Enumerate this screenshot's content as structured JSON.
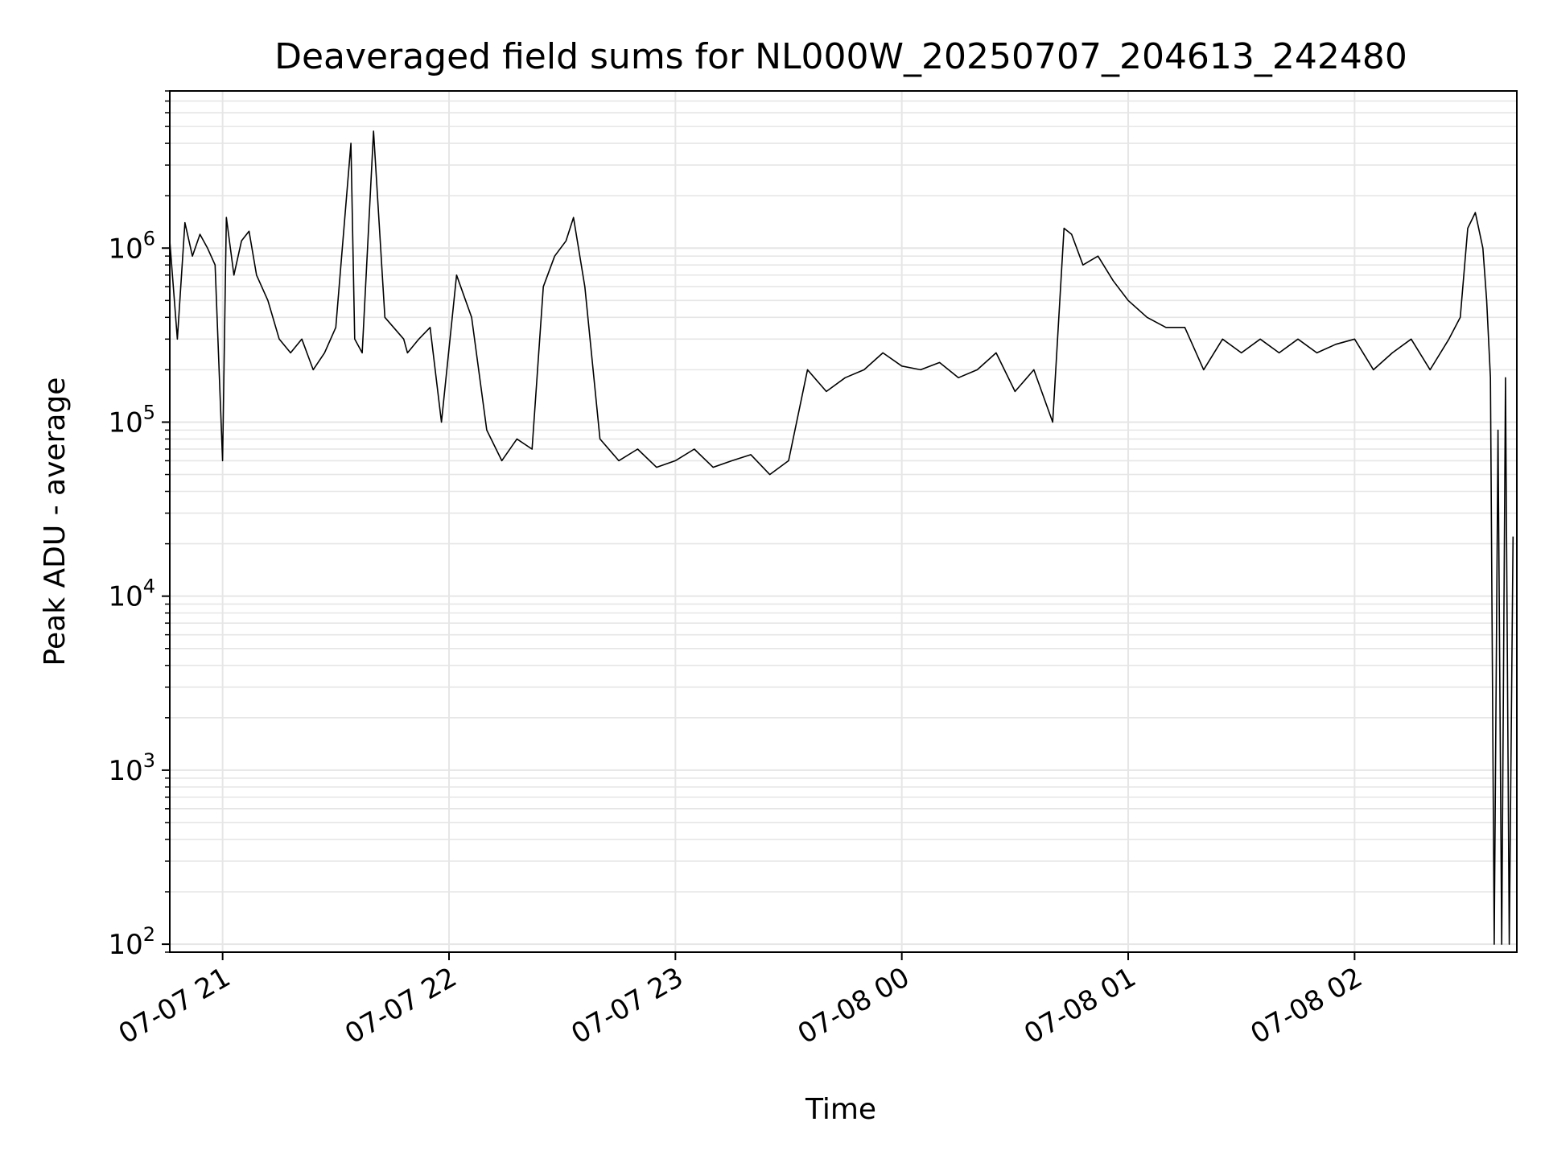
{
  "chart_data": {
    "type": "line",
    "title": "Deaveraged field sums for NL000W_20250707_204613_242480",
    "xlabel": "Time",
    "ylabel": "Peak ADU - average",
    "yscale": "log",
    "ylim": [
      90,
      8000000
    ],
    "xlim": [
      "2025-07-07 20:46",
      "2025-07-08 02:43"
    ],
    "grid": true,
    "line_color": "#000000",
    "grid_color": "#e6e6e6",
    "x_ticks": [
      {
        "time": "2025-07-07 21:00",
        "label": "07-07 21"
      },
      {
        "time": "2025-07-07 22:00",
        "label": "07-07 22"
      },
      {
        "time": "2025-07-07 23:00",
        "label": "07-07 23"
      },
      {
        "time": "2025-07-08 00:00",
        "label": "07-08 00"
      },
      {
        "time": "2025-07-08 01:00",
        "label": "07-08 01"
      },
      {
        "time": "2025-07-08 02:00",
        "label": "07-08 02"
      }
    ],
    "y_ticks": [
      {
        "value": 100,
        "base": "10",
        "exp": "2"
      },
      {
        "value": 1000,
        "base": "10",
        "exp": "3"
      },
      {
        "value": 10000,
        "base": "10",
        "exp": "4"
      },
      {
        "value": 100000,
        "base": "10",
        "exp": "5"
      },
      {
        "value": 1000000,
        "base": "10",
        "exp": "6"
      }
    ],
    "series": [
      {
        "x": [
          "2025-07-07 20:46",
          "2025-07-07 20:48",
          "2025-07-07 20:50",
          "2025-07-07 20:52",
          "2025-07-07 20:54",
          "2025-07-07 20:56",
          "2025-07-07 20:58",
          "2025-07-07 21:00",
          "2025-07-07 21:01",
          "2025-07-07 21:03",
          "2025-07-07 21:05",
          "2025-07-07 21:07",
          "2025-07-07 21:09",
          "2025-07-07 21:12",
          "2025-07-07 21:15",
          "2025-07-07 21:18",
          "2025-07-07 21:21",
          "2025-07-07 21:24",
          "2025-07-07 21:27",
          "2025-07-07 21:30",
          "2025-07-07 21:34",
          "2025-07-07 21:35",
          "2025-07-07 21:37",
          "2025-07-07 21:40",
          "2025-07-07 21:43",
          "2025-07-07 21:48",
          "2025-07-07 21:49",
          "2025-07-07 21:52",
          "2025-07-07 21:55",
          "2025-07-07 21:58",
          "2025-07-07 22:02",
          "2025-07-07 22:06",
          "2025-07-07 22:10",
          "2025-07-07 22:14",
          "2025-07-07 22:18",
          "2025-07-07 22:22",
          "2025-07-07 22:25",
          "2025-07-07 22:28",
          "2025-07-07 22:31",
          "2025-07-07 22:33",
          "2025-07-07 22:36",
          "2025-07-07 22:40",
          "2025-07-07 22:45",
          "2025-07-07 22:50",
          "2025-07-07 22:55",
          "2025-07-07 23:00",
          "2025-07-07 23:05",
          "2025-07-07 23:10",
          "2025-07-07 23:15",
          "2025-07-07 23:20",
          "2025-07-07 23:25",
          "2025-07-07 23:30",
          "2025-07-07 23:35",
          "2025-07-07 23:40",
          "2025-07-07 23:45",
          "2025-07-07 23:50",
          "2025-07-07 23:55",
          "2025-07-08 00:00",
          "2025-07-08 00:05",
          "2025-07-08 00:10",
          "2025-07-08 00:15",
          "2025-07-08 00:20",
          "2025-07-08 00:25",
          "2025-07-08 00:30",
          "2025-07-08 00:35",
          "2025-07-08 00:40",
          "2025-07-08 00:43",
          "2025-07-08 00:45",
          "2025-07-08 00:48",
          "2025-07-08 00:52",
          "2025-07-08 00:56",
          "2025-07-08 01:00",
          "2025-07-08 01:05",
          "2025-07-08 01:10",
          "2025-07-08 01:15",
          "2025-07-08 01:20",
          "2025-07-08 01:25",
          "2025-07-08 01:30",
          "2025-07-08 01:35",
          "2025-07-08 01:40",
          "2025-07-08 01:45",
          "2025-07-08 01:50",
          "2025-07-08 01:55",
          "2025-07-08 02:00",
          "2025-07-08 02:05",
          "2025-07-08 02:10",
          "2025-07-08 02:15",
          "2025-07-08 02:20",
          "2025-07-08 02:25",
          "2025-07-08 02:28",
          "2025-07-08 02:30",
          "2025-07-08 02:32",
          "2025-07-08 02:34",
          "2025-07-08 02:35",
          "2025-07-08 02:36",
          "2025-07-08 02:37",
          "2025-07-08 02:38",
          "2025-07-08 02:39",
          "2025-07-08 02:40",
          "2025-07-08 02:41",
          "2025-07-08 02:42"
        ],
        "y": [
          1100000,
          300000,
          1400000,
          900000,
          1200000,
          1000000,
          800000,
          60000,
          1500000,
          700000,
          1100000,
          1250000,
          700000,
          500000,
          300000,
          250000,
          300000,
          200000,
          250000,
          350000,
          4000000,
          300000,
          250000,
          4700000,
          400000,
          300000,
          250000,
          300000,
          350000,
          100000,
          700000,
          400000,
          90000,
          60000,
          80000,
          70000,
          600000,
          900000,
          1100000,
          1500000,
          600000,
          80000,
          60000,
          70000,
          55000,
          60000,
          70000,
          55000,
          60000,
          65000,
          50000,
          60000,
          200000,
          150000,
          180000,
          200000,
          250000,
          210000,
          200000,
          220000,
          180000,
          200000,
          250000,
          150000,
          200000,
          100000,
          1300000,
          1200000,
          800000,
          900000,
          650000,
          500000,
          400000,
          350000,
          350000,
          200000,
          300000,
          250000,
          300000,
          250000,
          300000,
          250000,
          280000,
          300000,
          200000,
          250000,
          300000,
          200000,
          300000,
          400000,
          1300000,
          1600000,
          1000000,
          500000,
          180000,
          100,
          90000,
          100,
          180000,
          100,
          22000
        ]
      }
    ]
  }
}
